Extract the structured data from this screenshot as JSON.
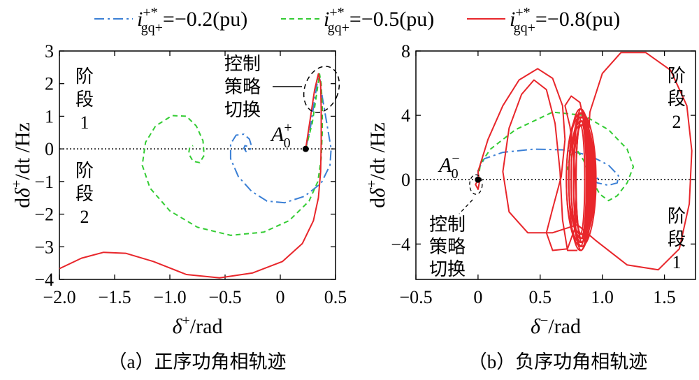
{
  "legend": {
    "items": [
      {
        "symbol": "i",
        "sup": "+*",
        "sub": "gq+",
        "value": "=−0.2(pu)",
        "color": "#3a7fd5",
        "style": "dashdot"
      },
      {
        "symbol": "i",
        "sup": "+*",
        "sub": "gq+",
        "value": "=−0.5(pu)",
        "color": "#33cc33",
        "style": "dashed"
      },
      {
        "symbol": "i",
        "sup": "+*",
        "sub": "gq+",
        "value": "=−0.8(pu)",
        "color": "#e8262b",
        "style": "solid"
      }
    ]
  },
  "chart_data": [
    {
      "type": "line",
      "panel": "a",
      "caption": "（a）正序功角相轨迹",
      "xlabel_main": "δ",
      "xlabel_sup": "+",
      "xlabel_unit": "/rad",
      "ylabel_main": "dδ",
      "ylabel_sup": "+",
      "ylabel_unit": "/dt /Hz",
      "xlim": [
        -2.0,
        0.5
      ],
      "ylim": [
        -4,
        3
      ],
      "xticks": [
        -2.0,
        -1.5,
        -1.0,
        -0.5,
        0,
        0.5
      ],
      "xtick_labels": [
        "−2.0",
        "−1.5",
        "−1.0",
        "−0.5",
        "0",
        "0.5"
      ],
      "yticks": [
        -4,
        -3,
        -2,
        -1,
        0,
        1,
        2,
        3
      ],
      "ytick_labels": [
        "−4",
        "−3",
        "−2",
        "−1",
        "0",
        "1",
        "2",
        "3"
      ],
      "start_point": {
        "x": 0.23,
        "y": 0,
        "label": "A",
        "sub": "0",
        "sup": "+"
      },
      "switch_label": [
        "控制",
        "策略",
        "切换"
      ],
      "stage_labels": [
        {
          "lines": [
            "阶",
            "段",
            "1"
          ],
          "pos": "upper-left"
        },
        {
          "lines": [
            "阶",
            "段",
            "2"
          ],
          "pos": "lower-left"
        }
      ],
      "series": [
        {
          "name": "−0.2",
          "points": [
            [
              0.23,
              0
            ],
            [
              0.27,
              0.6
            ],
            [
              0.31,
              1.5
            ],
            [
              0.345,
              2.25
            ],
            [
              0.36,
              2.1
            ],
            [
              0.38,
              1.6
            ],
            [
              0.42,
              0.8
            ],
            [
              0.46,
              0
            ],
            [
              0.45,
              -0.5
            ],
            [
              0.37,
              -1.05
            ],
            [
              0.22,
              -1.45
            ],
            [
              0.04,
              -1.65
            ],
            [
              -0.12,
              -1.6
            ],
            [
              -0.26,
              -1.3
            ],
            [
              -0.38,
              -0.85
            ],
            [
              -0.45,
              -0.3
            ],
            [
              -0.45,
              0.15
            ],
            [
              -0.4,
              0.42
            ],
            [
              -0.33,
              0.45
            ],
            [
              -0.28,
              0.3
            ],
            [
              -0.26,
              0.08
            ],
            [
              -0.28,
              -0.05
            ],
            [
              -0.31,
              -0.08
            ],
            [
              -0.33,
              0.02
            ],
            [
              -0.32,
              0.1
            ],
            [
              -0.3,
              0.08
            ]
          ]
        },
        {
          "name": "−0.5",
          "points": [
            [
              0.23,
              0
            ],
            [
              0.29,
              0.8
            ],
            [
              0.33,
              1.7
            ],
            [
              0.355,
              2.3
            ],
            [
              0.37,
              2.0
            ],
            [
              0.38,
              1.3
            ],
            [
              0.38,
              0.5
            ],
            [
              0.37,
              -0.3
            ],
            [
              0.34,
              -1.0
            ],
            [
              0.26,
              -1.6
            ],
            [
              0.08,
              -2.2
            ],
            [
              -0.15,
              -2.55
            ],
            [
              -0.45,
              -2.65
            ],
            [
              -0.75,
              -2.4
            ],
            [
              -1.0,
              -1.9
            ],
            [
              -1.18,
              -1.2
            ],
            [
              -1.25,
              -0.5
            ],
            [
              -1.22,
              0.2
            ],
            [
              -1.13,
              0.7
            ],
            [
              -0.98,
              1.02
            ],
            [
              -0.85,
              1.0
            ],
            [
              -0.76,
              0.7
            ],
            [
              -0.7,
              0.25
            ],
            [
              -0.69,
              -0.2
            ],
            [
              -0.73,
              -0.42
            ],
            [
              -0.79,
              -0.38
            ],
            [
              -0.83,
              -0.15
            ],
            [
              -0.82,
              0.05
            ],
            [
              -0.79,
              0.1
            ]
          ]
        },
        {
          "name": "−0.8",
          "points": [
            [
              0.23,
              0
            ],
            [
              0.27,
              0.9
            ],
            [
              0.31,
              1.8
            ],
            [
              0.345,
              2.3
            ],
            [
              0.365,
              2.0
            ],
            [
              0.37,
              1.2
            ],
            [
              0.37,
              0.2
            ],
            [
              0.365,
              -0.7
            ],
            [
              0.345,
              -1.5
            ],
            [
              0.3,
              -2.2
            ],
            [
              0.2,
              -2.9
            ],
            [
              0.02,
              -3.45
            ],
            [
              -0.25,
              -3.8
            ],
            [
              -0.55,
              -3.95
            ],
            [
              -0.85,
              -3.85
            ],
            [
              -1.15,
              -3.45
            ],
            [
              -1.4,
              -3.2
            ],
            [
              -1.6,
              -3.17
            ],
            [
              -1.8,
              -3.35
            ],
            [
              -2.0,
              -3.67
            ]
          ]
        }
      ]
    },
    {
      "type": "line",
      "panel": "b",
      "caption": "（b）负序功角相轨迹",
      "xlabel_main": "δ",
      "xlabel_sup": "−",
      "xlabel_unit": "/rad",
      "ylabel_main": "dδ",
      "ylabel_sup": "+",
      "ylabel_unit": "/dt /Hz",
      "xlim": [
        -0.5,
        1.75
      ],
      "ylim": [
        -6.2,
        8
      ],
      "xticks": [
        -0.5,
        0,
        0.5,
        1.0,
        1.5
      ],
      "xtick_labels": [
        "−0.5",
        "0",
        "0.5",
        "1.0",
        "1.5"
      ],
      "yticks": [
        -4,
        0,
        4,
        8
      ],
      "ytick_labels": [
        "−4",
        "0",
        "4",
        "8"
      ],
      "start_point": {
        "x": 0,
        "y": 0,
        "label": "A",
        "sub": "0",
        "sup": "−"
      },
      "switch_label": [
        "控制",
        "策略",
        "切换"
      ],
      "stage_labels": [
        {
          "lines": [
            "阶",
            "段",
            "2"
          ],
          "pos": "upper-right"
        },
        {
          "lines": [
            "阶",
            "段",
            "1"
          ],
          "pos": "lower-right"
        }
      ],
      "series": [
        {
          "name": "−0.2",
          "points": [
            [
              0,
              0
            ],
            [
              0.0,
              0.6
            ],
            [
              0.05,
              1.3
            ],
            [
              0.2,
              1.7
            ],
            [
              0.45,
              1.9
            ],
            [
              0.7,
              1.85
            ],
            [
              0.9,
              1.5
            ],
            [
              1.05,
              0.9
            ],
            [
              1.13,
              0.25
            ],
            [
              1.12,
              -0.2
            ],
            [
              1.05,
              -0.35
            ],
            [
              0.96,
              -0.2
            ],
            [
              0.91,
              0.1
            ],
            [
              0.93,
              0.2
            ],
            [
              0.97,
              0.05
            ]
          ]
        },
        {
          "name": "−0.5",
          "points": [
            [
              0,
              0
            ],
            [
              0.02,
              1.0
            ],
            [
              0.1,
              1.9
            ],
            [
              0.3,
              3.1
            ],
            [
              0.6,
              4.2
            ],
            [
              0.85,
              4.0
            ],
            [
              1.05,
              3.1
            ],
            [
              1.2,
              1.9
            ],
            [
              1.25,
              0.8
            ],
            [
              1.2,
              -0.2
            ],
            [
              1.12,
              -1.0
            ],
            [
              1.05,
              -1.3
            ],
            [
              0.98,
              -0.9
            ],
            [
              0.9,
              0.2
            ],
            [
              0.85,
              1.2
            ],
            [
              0.8,
              1.8
            ],
            [
              0.74,
              1.5
            ],
            [
              0.72,
              0.6
            ]
          ]
        },
        {
          "name": "−0.8",
          "oscillation_center": [
            0.83,
            0
          ]
        }
      ]
    }
  ]
}
